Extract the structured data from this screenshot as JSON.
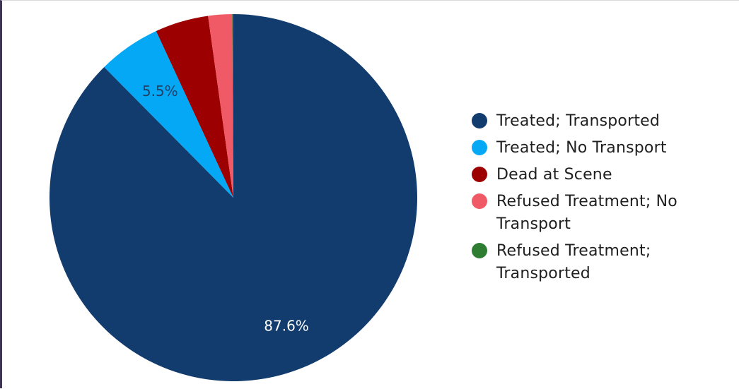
{
  "chart_data": {
    "type": "pie",
    "title": "",
    "start_angle_deg": 0,
    "direction": "clockwise",
    "slices": [
      {
        "name": "Treated; Transported",
        "value": 87.6,
        "label": "87.6%",
        "color": "#133c6e",
        "label_color": "#ffffff"
      },
      {
        "name": "Treated; No Transport",
        "value": 5.5,
        "label": "5.5%",
        "color": "#04a8f4",
        "label_color": "#1f3f66"
      },
      {
        "name": "Dead at Scene",
        "value": 4.7,
        "label": "",
        "color": "#9d0000",
        "label_color": "#ffffff"
      },
      {
        "name": "Refused Treatment; No Transport",
        "value": 2.1,
        "label": "",
        "color": "#f05a66",
        "label_color": "#ffffff"
      },
      {
        "name": "Refused Treatment; Transported",
        "value": 0.1,
        "label": "",
        "color": "#2e7d32",
        "label_color": "#ffffff"
      }
    ],
    "legend_position": "right"
  },
  "legend": {
    "items": [
      {
        "label": "Treated; Transported",
        "color": "#133c6e"
      },
      {
        "label": "Treated; No Transport",
        "color": "#04a8f4"
      },
      {
        "label": "Dead at Scene",
        "color": "#9d0000"
      },
      {
        "label": "Refused Treatment; No Transport",
        "color": "#f05a66"
      },
      {
        "label": "Refused Treatment; Transported",
        "color": "#2e7d32"
      }
    ]
  }
}
